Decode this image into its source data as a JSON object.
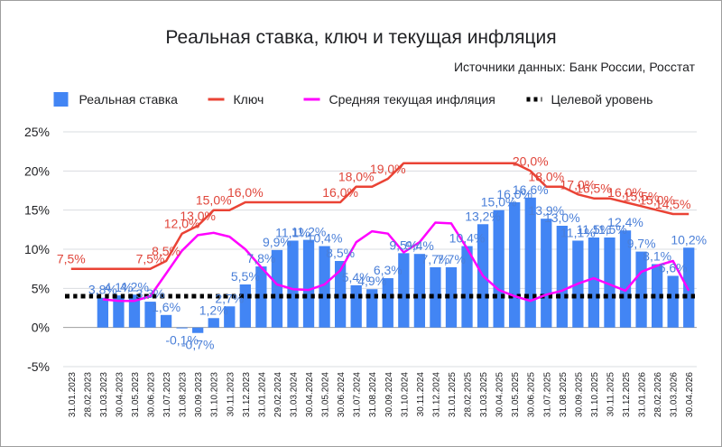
{
  "chart_data": {
    "type": "bar",
    "title": "Реальная ставка, ключ и текущая инфляция",
    "subtitle": "Источники данных: Банк России, Росстат",
    "categories": [
      "31.01.2023",
      "28.02.2023",
      "31.03.2023",
      "30.04.2023",
      "31.05.2023",
      "30.06.2023",
      "31.07.2023",
      "31.08.2023",
      "30.09.2023",
      "31.10.2023",
      "30.11.2023",
      "31.12.2023",
      "31.01.2024",
      "29.02.2024",
      "31.03.2024",
      "30.04.2024",
      "31.05.2024",
      "30.06.2024",
      "31.07.2024",
      "31.08.2024",
      "30.09.2024",
      "31.10.2024",
      "30.11.2024",
      "31.12.2024",
      "31.01.2025",
      "28.02.2025",
      "31.03.2025",
      "30.04.2025",
      "31.05.2025",
      "30.06.2025",
      "31.07.2025",
      "31.08.2025",
      "30.09.2025",
      "31.10.2025",
      "30.11.2025",
      "31.12.2025",
      "31.01.2026",
      "28.02.2026",
      "31.03.2026",
      "30.04.2026"
    ],
    "ylim": [
      -5,
      25
    ],
    "yticks": [
      -5,
      0,
      5,
      10,
      15,
      20,
      25
    ],
    "ytick_labels": [
      "-5%",
      "0%",
      "5%",
      "10%",
      "15%",
      "20%",
      "25%"
    ],
    "grid": true,
    "legend_position": "top",
    "series": [
      {
        "name": "Реальная ставка",
        "kind": "bar",
        "color": "#4285f4",
        "values": [
          null,
          null,
          3.8,
          4.1,
          4.2,
          3.3,
          1.6,
          -0.1,
          -0.7,
          1.2,
          2.7,
          5.5,
          7.8,
          9.9,
          11.1,
          11.2,
          10.4,
          8.5,
          5.4,
          4.9,
          6.3,
          9.5,
          9.4,
          7.7,
          7.7,
          10.4,
          13.2,
          15.0,
          16.0,
          16.6,
          13.9,
          13.0,
          11.1,
          11.5,
          11.5,
          12.4,
          9.7,
          8.1,
          6.6,
          10.2
        ],
        "labels": [
          "",
          "",
          "3,8%",
          "4,1%",
          "4,2%",
          "3,3%",
          "1,6%",
          "-0,1%",
          "-0,7%",
          "1,2%",
          "2,7%",
          "5,5%",
          "7,8%",
          "9,9%",
          "11,1%",
          "11,2%",
          "10,4%",
          "8,5%",
          "5,4%",
          "4,9%",
          "6,3%",
          "9,5%",
          "9,4%",
          "7,7%",
          "7,7%",
          "10,4%",
          "13,2%",
          "15,0%",
          "16,0%",
          "16,6%",
          "13,9%",
          "13,0%",
          "11,1%",
          "11,5%",
          "11,5%",
          "12,4%",
          "9,7%",
          "8,1%",
          "6,6%",
          "10,2%"
        ]
      },
      {
        "name": "Ключ",
        "kind": "line",
        "color": "#ea4335",
        "values": [
          7.5,
          7.5,
          7.5,
          7.5,
          7.5,
          7.5,
          8.5,
          12.0,
          13.0,
          15.0,
          15.0,
          16.0,
          16.0,
          16.0,
          16.0,
          16.0,
          16.0,
          16.0,
          18.0,
          18.0,
          19.0,
          21.0,
          21.0,
          21.0,
          21.0,
          21.0,
          21.0,
          21.0,
          21.0,
          20.0,
          18.0,
          18.0,
          17.0,
          16.5,
          16.5,
          16.0,
          15.5,
          15.0,
          14.5,
          14.5
        ],
        "labels": [
          "7,5%",
          "",
          "",
          "",
          "",
          "7,5%",
          "8,5%",
          "12,0%",
          "13,0%",
          "15,0%",
          "",
          "16,0%",
          "",
          "",
          "",
          "",
          "",
          "16,0%",
          "18,0%",
          "",
          "19,0%",
          "",
          "",
          "",
          "",
          "",
          "",
          "",
          "",
          "20,0%",
          "18,0%",
          "",
          "17,0%",
          "16,5%",
          "",
          "16,0%",
          "15,5%",
          "15,0%",
          "14,5%",
          ""
        ]
      },
      {
        "name": "Средняя текущая инфляция",
        "kind": "line",
        "color": "#ff00ff",
        "values": [
          null,
          null,
          3.6,
          3.4,
          3.4,
          4.0,
          6.9,
          9.8,
          11.8,
          12.1,
          11.6,
          10.0,
          7.7,
          5.5,
          4.9,
          4.8,
          5.5,
          7.3,
          10.9,
          12.3,
          12.0,
          9.6,
          10.9,
          13.4,
          13.3,
          10.1,
          6.6,
          4.8,
          4.0,
          3.4,
          4.2,
          4.7,
          5.6,
          6.3,
          5.5,
          4.7,
          7.1,
          7.9,
          8.5,
          4.7
        ]
      },
      {
        "name": "Целевой уровень",
        "kind": "line",
        "style": "dotted",
        "color": "#000000",
        "values": [
          4,
          4,
          4,
          4,
          4,
          4,
          4,
          4,
          4,
          4,
          4,
          4,
          4,
          4,
          4,
          4,
          4,
          4,
          4,
          4,
          4,
          4,
          4,
          4,
          4,
          4,
          4,
          4,
          4,
          4,
          4,
          4,
          4,
          4,
          4,
          4,
          4,
          4,
          4,
          4
        ]
      }
    ]
  }
}
